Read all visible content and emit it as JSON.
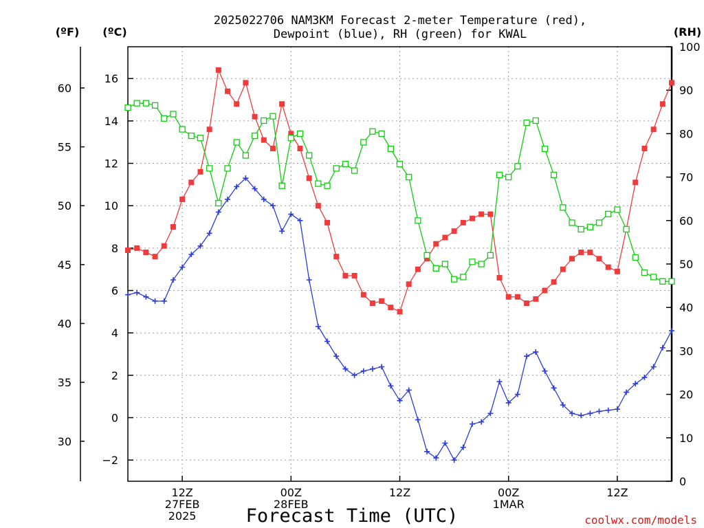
{
  "chart_data": {
    "type": "line",
    "title_line1": "2025022706 NAM3KM Forecast 2-meter Temperature (red),",
    "title_line2": "Dewpoint (blue), RH (green) for KWAL",
    "xlabel": "Forecast Time (UTC)",
    "credit": "coolwx.com/models",
    "left_axis_unit_f": "(ºF)",
    "left_axis_unit_c": "(ºC)",
    "right_axis_unit": "(RH)",
    "x_range_hours": [
      0,
      60
    ],
    "ylim_c": [
      -3,
      17.5
    ],
    "ylim_rh": [
      0,
      100
    ],
    "ylim_f": [
      26.6,
      63.5
    ],
    "yticks_c": [
      -2,
      0,
      2,
      4,
      6,
      8,
      10,
      12,
      14,
      16
    ],
    "yticks_f": [
      30,
      35,
      40,
      45,
      50,
      55,
      60
    ],
    "yticks_rh": [
      0,
      10,
      20,
      30,
      40,
      50,
      60,
      70,
      80,
      90,
      100
    ],
    "x_ticks": [
      {
        "hour": 6,
        "lines": [
          "12Z",
          "27FEB",
          "2025"
        ]
      },
      {
        "hour": 18,
        "lines": [
          "00Z",
          "28FEB"
        ]
      },
      {
        "hour": 30,
        "lines": [
          "12Z"
        ]
      },
      {
        "hour": 42,
        "lines": [
          "00Z",
          "1MAR"
        ]
      },
      {
        "hour": 54,
        "lines": [
          "12Z"
        ]
      }
    ],
    "grid": true,
    "series": [
      {
        "name": "2-meter Temperature",
        "axis": "celsius",
        "color": "#ee3b3b",
        "marker": "filled-square",
        "values": [
          7.9,
          8.0,
          7.8,
          7.6,
          8.1,
          9.0,
          10.3,
          11.1,
          11.6,
          13.6,
          16.4,
          15.4,
          14.8,
          15.8,
          14.2,
          13.1,
          12.7,
          14.8,
          13.4,
          12.7,
          11.3,
          10.0,
          9.2,
          7.6,
          6.7,
          6.7,
          5.8,
          5.4,
          5.5,
          5.2,
          5.0,
          6.3,
          7.0,
          7.5,
          8.2,
          8.5,
          8.8,
          9.2,
          9.4,
          9.6,
          9.6,
          6.6,
          5.7,
          5.7,
          5.4,
          5.6,
          6.0,
          6.4,
          7.0,
          7.5,
          7.8,
          7.8,
          7.5,
          7.1,
          6.9,
          8.9,
          11.1,
          12.7,
          13.6,
          14.8,
          15.8
        ]
      },
      {
        "name": "Dewpoint",
        "axis": "celsius",
        "color": "#2b3bd8",
        "marker": "plus",
        "values": [
          5.8,
          5.9,
          5.7,
          5.5,
          5.5,
          6.5,
          7.1,
          7.7,
          8.1,
          8.7,
          9.7,
          10.3,
          10.9,
          11.3,
          10.8,
          10.3,
          10.0,
          8.8,
          9.6,
          9.3,
          6.5,
          4.3,
          3.6,
          2.9,
          2.3,
          2.0,
          2.2,
          2.3,
          2.4,
          1.5,
          0.8,
          1.3,
          -0.1,
          -1.6,
          -1.9,
          -1.2,
          -2.0,
          -1.4,
          -0.3,
          -0.2,
          0.2,
          1.7,
          0.7,
          1.1,
          2.9,
          3.1,
          2.2,
          1.4,
          0.6,
          0.2,
          0.1,
          0.2,
          0.3,
          0.35,
          0.4,
          1.2,
          1.6,
          1.9,
          2.4,
          3.3,
          4.1
        ]
      },
      {
        "name": "RH",
        "axis": "rh",
        "color": "#11cc11",
        "marker": "open-square",
        "values": [
          86,
          87,
          87,
          86.5,
          83.5,
          84.5,
          81,
          79.5,
          79,
          72,
          64,
          72,
          78,
          75,
          79.5,
          83,
          84,
          68,
          79,
          80,
          75,
          68.5,
          68,
          72,
          73,
          71.5,
          78,
          80.5,
          80,
          76.5,
          73,
          70,
          60,
          52,
          49,
          50,
          46.5,
          47,
          50.5,
          50,
          52,
          70.5,
          70,
          72.5,
          82.5,
          83,
          76.5,
          70.5,
          63,
          59.5,
          58,
          58.5,
          59.5,
          61.5,
          62.5,
          58,
          51.5,
          48,
          47,
          46,
          46
        ]
      }
    ]
  }
}
